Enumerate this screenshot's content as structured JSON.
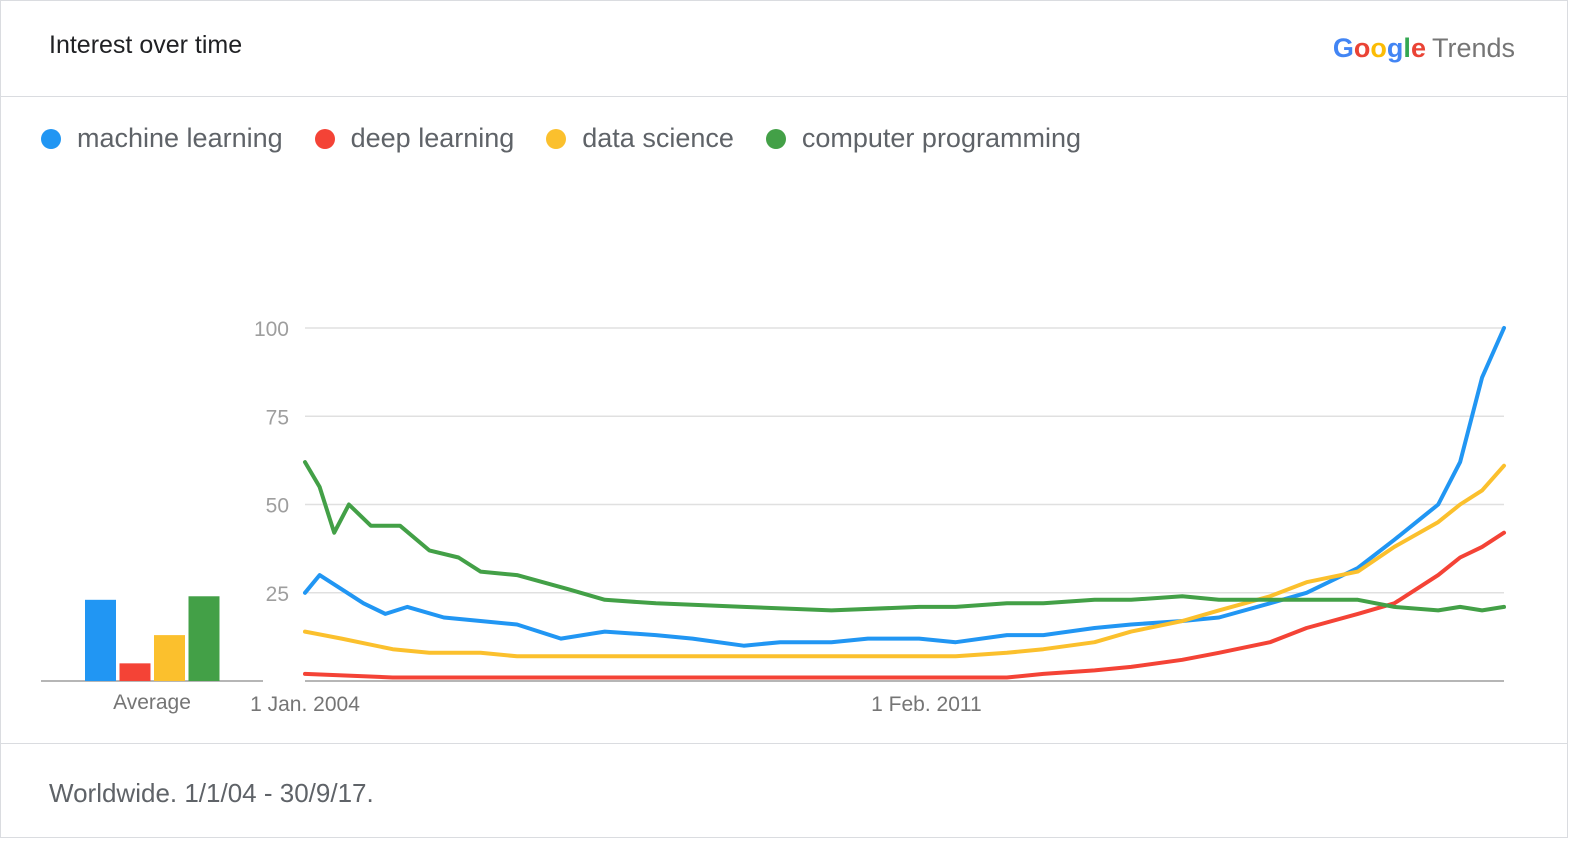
{
  "header": {
    "title": "Interest over time",
    "brand_google": "Google",
    "brand_trends": "Trends"
  },
  "legend": [
    {
      "label": "machine learning",
      "color": "#2196f3"
    },
    {
      "label": "deep learning",
      "color": "#f44336"
    },
    {
      "label": "data science",
      "color": "#fbc02d"
    },
    {
      "label": "computer programming",
      "color": "#43a047"
    }
  ],
  "footer": {
    "text": "Worldwide. 1/1/04 - 30/9/17."
  },
  "chart_data": {
    "type": "line",
    "x_start": "2004-01",
    "x_end": "2017-09",
    "x_ticks": [
      "1 Jan. 2004",
      "1 Feb. 2011"
    ],
    "y_ticks": [
      25,
      50,
      75,
      100
    ],
    "ylim": [
      0,
      100
    ],
    "grid": true,
    "average_label": "Average",
    "averages": [
      {
        "name": "machine learning",
        "value": 23
      },
      {
        "name": "deep learning",
        "value": 5
      },
      {
        "name": "data science",
        "value": 13
      },
      {
        "name": "computer programming",
        "value": 24
      }
    ],
    "series": [
      {
        "name": "machine learning",
        "color": "#2196f3",
        "points": [
          [
            "2004-01",
            25
          ],
          [
            "2004-03",
            30
          ],
          [
            "2004-06",
            26
          ],
          [
            "2004-09",
            22
          ],
          [
            "2004-12",
            19
          ],
          [
            "2005-03",
            21
          ],
          [
            "2005-08",
            18
          ],
          [
            "2006-01",
            17
          ],
          [
            "2006-06",
            16
          ],
          [
            "2006-12",
            12
          ],
          [
            "2007-06",
            14
          ],
          [
            "2008-01",
            13
          ],
          [
            "2008-06",
            12
          ],
          [
            "2009-01",
            10
          ],
          [
            "2009-06",
            11
          ],
          [
            "2010-01",
            11
          ],
          [
            "2010-06",
            12
          ],
          [
            "2011-01",
            12
          ],
          [
            "2011-06",
            11
          ],
          [
            "2012-01",
            13
          ],
          [
            "2012-06",
            13
          ],
          [
            "2013-01",
            15
          ],
          [
            "2013-06",
            16
          ],
          [
            "2014-01",
            17
          ],
          [
            "2014-06",
            18
          ],
          [
            "2015-01",
            22
          ],
          [
            "2015-06",
            25
          ],
          [
            "2016-01",
            32
          ],
          [
            "2016-06",
            40
          ],
          [
            "2016-12",
            50
          ],
          [
            "2017-03",
            62
          ],
          [
            "2017-06",
            86
          ],
          [
            "2017-09",
            100
          ]
        ]
      },
      {
        "name": "deep learning",
        "color": "#f44336",
        "points": [
          [
            "2004-01",
            2
          ],
          [
            "2005-01",
            1
          ],
          [
            "2006-01",
            1
          ],
          [
            "2007-01",
            1
          ],
          [
            "2008-01",
            1
          ],
          [
            "2009-01",
            1
          ],
          [
            "2010-01",
            1
          ],
          [
            "2011-01",
            1
          ],
          [
            "2011-06",
            1
          ],
          [
            "2012-01",
            1
          ],
          [
            "2012-06",
            2
          ],
          [
            "2013-01",
            3
          ],
          [
            "2013-06",
            4
          ],
          [
            "2014-01",
            6
          ],
          [
            "2014-06",
            8
          ],
          [
            "2015-01",
            11
          ],
          [
            "2015-06",
            15
          ],
          [
            "2016-01",
            19
          ],
          [
            "2016-06",
            22
          ],
          [
            "2016-12",
            30
          ],
          [
            "2017-03",
            35
          ],
          [
            "2017-06",
            38
          ],
          [
            "2017-09",
            42
          ]
        ]
      },
      {
        "name": "data science",
        "color": "#fbc02d",
        "points": [
          [
            "2004-01",
            14
          ],
          [
            "2004-06",
            12
          ],
          [
            "2005-01",
            9
          ],
          [
            "2005-06",
            8
          ],
          [
            "2006-01",
            8
          ],
          [
            "2006-06",
            7
          ],
          [
            "2007-01",
            7
          ],
          [
            "2008-01",
            7
          ],
          [
            "2009-01",
            7
          ],
          [
            "2010-01",
            7
          ],
          [
            "2011-01",
            7
          ],
          [
            "2011-06",
            7
          ],
          [
            "2012-01",
            8
          ],
          [
            "2012-06",
            9
          ],
          [
            "2013-01",
            11
          ],
          [
            "2013-06",
            14
          ],
          [
            "2014-01",
            17
          ],
          [
            "2014-06",
            20
          ],
          [
            "2015-01",
            24
          ],
          [
            "2015-06",
            28
          ],
          [
            "2016-01",
            31
          ],
          [
            "2016-06",
            38
          ],
          [
            "2016-12",
            45
          ],
          [
            "2017-03",
            50
          ],
          [
            "2017-06",
            54
          ],
          [
            "2017-09",
            61
          ]
        ]
      },
      {
        "name": "computer programming",
        "color": "#43a047",
        "points": [
          [
            "2004-01",
            62
          ],
          [
            "2004-03",
            55
          ],
          [
            "2004-05",
            42
          ],
          [
            "2004-07",
            50
          ],
          [
            "2004-10",
            44
          ],
          [
            "2005-02",
            44
          ],
          [
            "2005-06",
            37
          ],
          [
            "2005-10",
            35
          ],
          [
            "2006-01",
            31
          ],
          [
            "2006-06",
            30
          ],
          [
            "2007-01",
            26
          ],
          [
            "2007-06",
            23
          ],
          [
            "2008-01",
            22
          ],
          [
            "2009-01",
            21
          ],
          [
            "2010-01",
            20
          ],
          [
            "2011-01",
            21
          ],
          [
            "2011-06",
            21
          ],
          [
            "2012-01",
            22
          ],
          [
            "2012-06",
            22
          ],
          [
            "2013-01",
            23
          ],
          [
            "2013-06",
            23
          ],
          [
            "2014-01",
            24
          ],
          [
            "2014-06",
            23
          ],
          [
            "2015-01",
            23
          ],
          [
            "2015-06",
            23
          ],
          [
            "2016-01",
            23
          ],
          [
            "2016-06",
            21
          ],
          [
            "2016-12",
            20
          ],
          [
            "2017-03",
            21
          ],
          [
            "2017-06",
            20
          ],
          [
            "2017-09",
            21
          ]
        ]
      }
    ]
  }
}
